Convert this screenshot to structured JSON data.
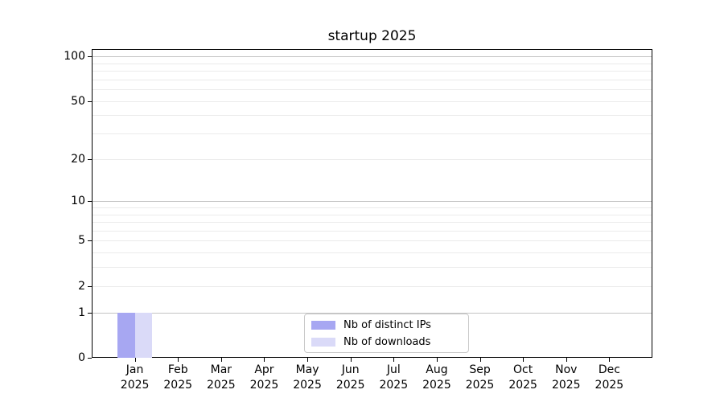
{
  "chart_data": {
    "type": "bar",
    "title": "startup 2025",
    "xlabel": "",
    "ylabel": "",
    "yscale": "log1p",
    "ylim": [
      0,
      112
    ],
    "grid": true,
    "legend_position": "lower center",
    "categories": [
      "Jan 2025",
      "Feb 2025",
      "Mar 2025",
      "Apr 2025",
      "May 2025",
      "Jun 2025",
      "Jul 2025",
      "Aug 2025",
      "Sep 2025",
      "Oct 2025",
      "Nov 2025",
      "Dec 2025"
    ],
    "series": [
      {
        "name": "Nb of distinct IPs",
        "color": "#a7a7f2",
        "values": [
          1,
          0,
          0,
          0,
          0,
          0,
          0,
          0,
          0,
          0,
          0,
          0
        ]
      },
      {
        "name": "Nb of downloads",
        "color": "#dadaf8",
        "values": [
          1,
          0,
          0,
          0,
          0,
          0,
          0,
          0,
          0,
          0,
          0,
          0
        ]
      }
    ],
    "ytick_labels": [
      0,
      1,
      2,
      5,
      10,
      20,
      50,
      100
    ],
    "gridlines": {
      "major": [
        1,
        10,
        100
      ],
      "minor": [
        2,
        3,
        4,
        5,
        6,
        7,
        8,
        9,
        20,
        30,
        40,
        50,
        60,
        70,
        80,
        90
      ]
    }
  },
  "colors": {
    "background": "#ffffff",
    "axis": "#000000",
    "grid_major": "#c3c3c3",
    "grid_minor": "#ebebeb",
    "legend_border": "#c9c9c9",
    "text": "#000000"
  }
}
